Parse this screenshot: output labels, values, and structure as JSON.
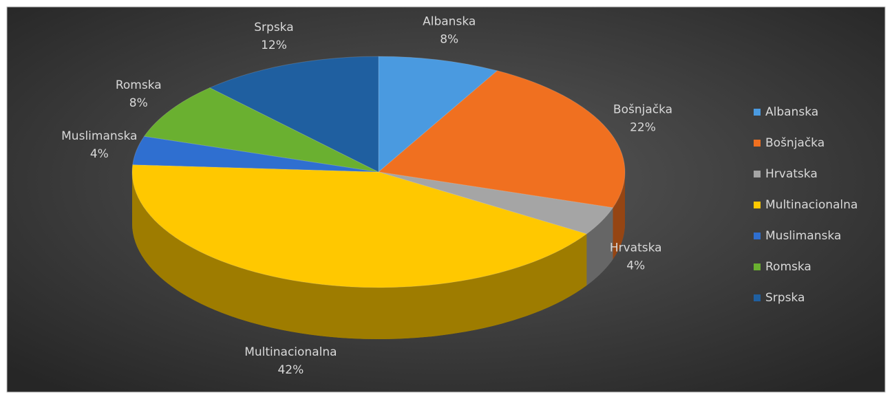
{
  "chart_data": {
    "type": "pie",
    "categories": [
      "Albanska",
      "Bošnjačka",
      "Hrvatska",
      "Multinacionalna",
      "Muslimanska",
      "Romska",
      "Srpska"
    ],
    "values": [
      8,
      22,
      4,
      42,
      4,
      8,
      12
    ],
    "value_labels": [
      "8%",
      "22%",
      "4%",
      "42%",
      "4%",
      "8%",
      "12%"
    ],
    "colors": [
      "#4a9ae0",
      "#f07020",
      "#a5a5a5",
      "#ffc800",
      "#2f6fd0",
      "#6ab030",
      "#1f5fa0"
    ],
    "legend": "right"
  }
}
